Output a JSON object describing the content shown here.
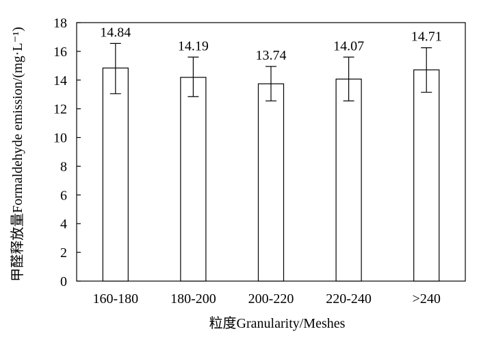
{
  "chart_data": {
    "type": "bar",
    "categories": [
      "160-180",
      "180-200",
      "200-220",
      "220-240",
      ">240"
    ],
    "values": [
      14.84,
      14.19,
      13.74,
      14.07,
      14.71
    ],
    "error_lower": [
      13.05,
      12.85,
      12.55,
      12.55,
      13.15
    ],
    "error_upper": [
      16.55,
      15.6,
      14.95,
      15.6,
      16.25
    ],
    "data_labels": [
      "14.84",
      "14.19",
      "13.74",
      "14.07",
      "14.71"
    ],
    "xlabel": "粒度Granularity/Meshes",
    "ylabel": "甲醛释放量Formaldehyde emission/(mg·L⁻¹)",
    "ylim": [
      0,
      18
    ],
    "yticks": [
      0,
      2,
      4,
      6,
      8,
      10,
      12,
      14,
      16,
      18
    ],
    "grid": false,
    "bar_fill": "#ffffff",
    "bar_stroke": "#000000"
  }
}
